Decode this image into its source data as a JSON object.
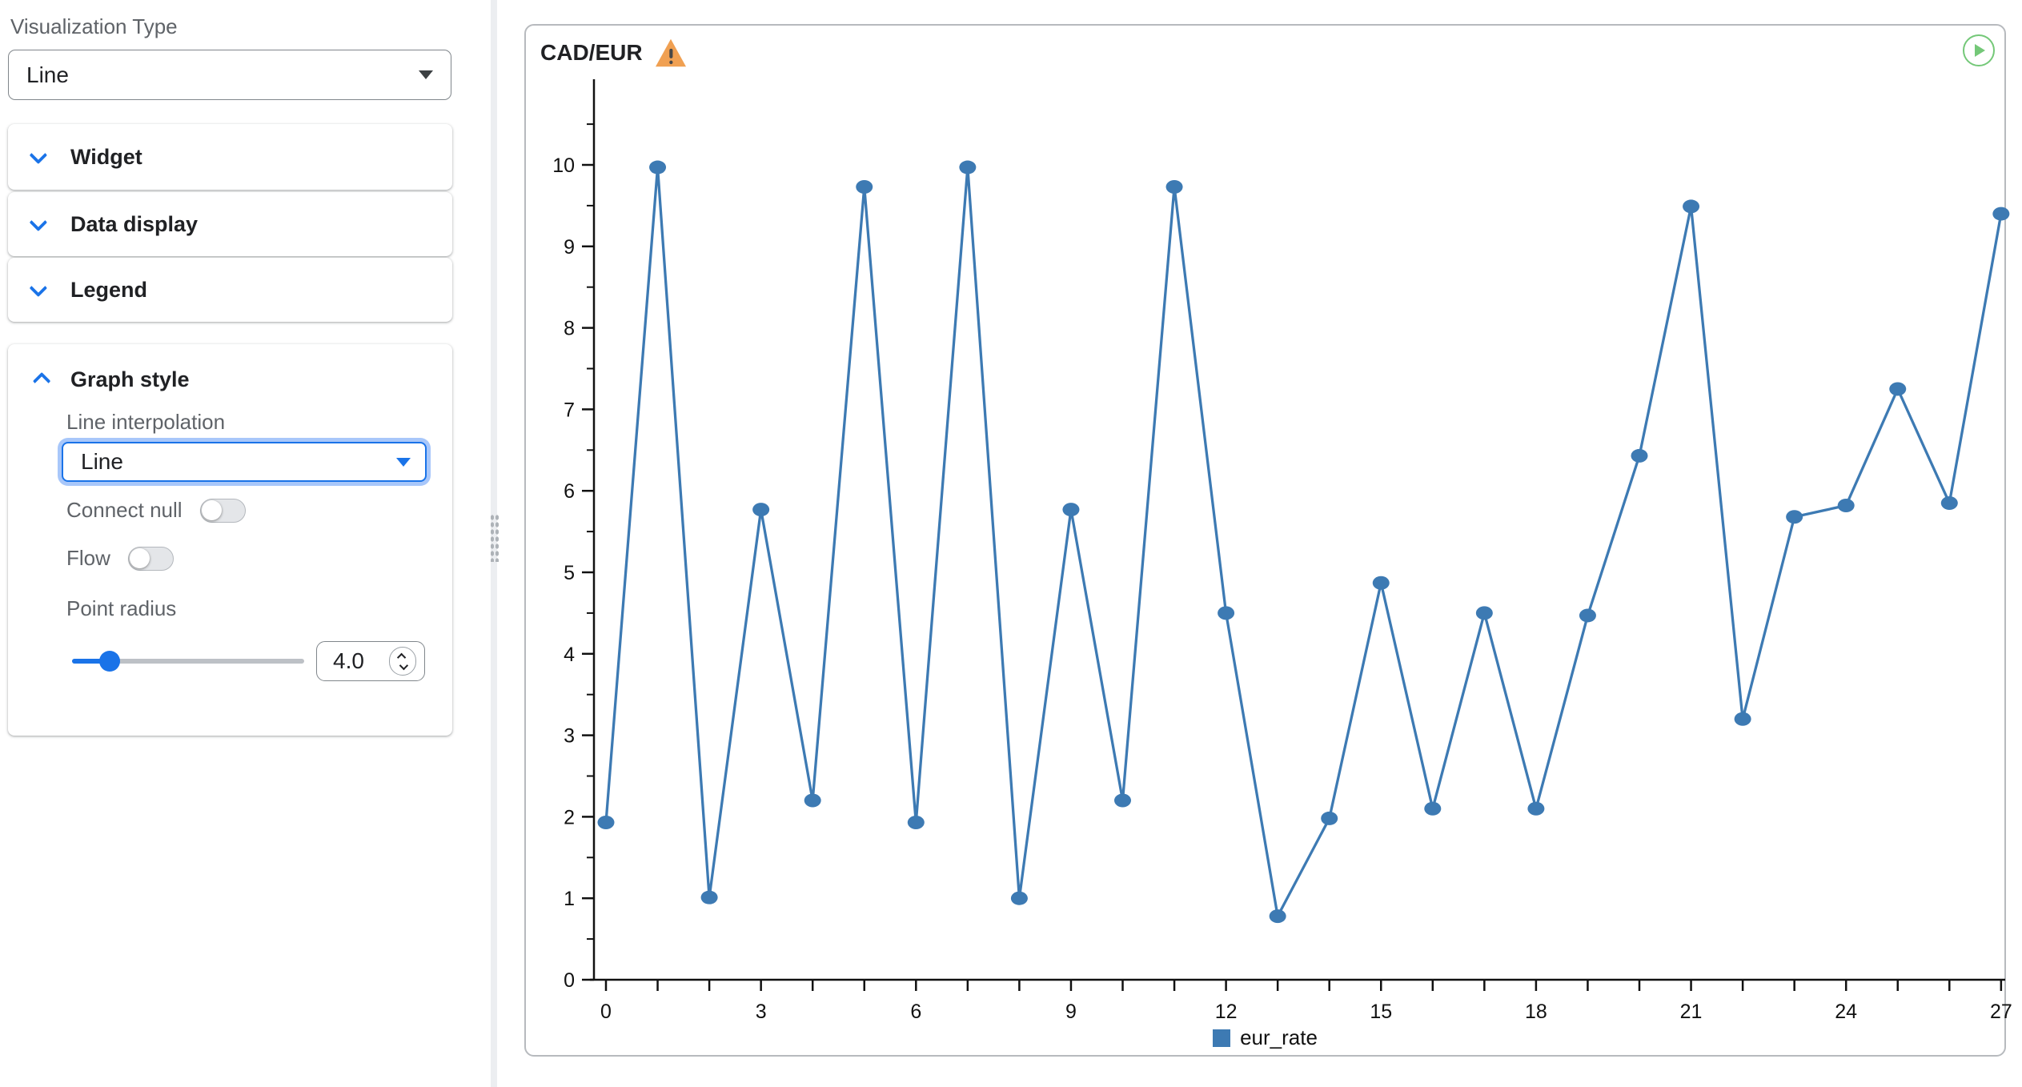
{
  "sidebar": {
    "visualization_type": {
      "label": "Visualization Type",
      "value": "Line"
    },
    "sections": [
      {
        "label": "Widget",
        "expanded": false
      },
      {
        "label": "Data display",
        "expanded": false
      },
      {
        "label": "Legend",
        "expanded": false
      },
      {
        "label": "Graph style",
        "expanded": true
      }
    ],
    "graph_style": {
      "line_interpolation": {
        "label": "Line interpolation",
        "value": "Line"
      },
      "connect_null": {
        "label": "Connect null",
        "value": "off"
      },
      "flow": {
        "label": "Flow",
        "value": "off"
      },
      "point_radius": {
        "label": "Point radius",
        "value": "4.0"
      }
    }
  },
  "panel": {
    "title": "CAD/EUR",
    "warning_icon": "warning-triangle",
    "run_icon": "play-circle",
    "colors": {
      "warning": "#f0a052",
      "play": "#74c878",
      "accent": "#1a73e8"
    }
  },
  "chart_data": {
    "type": "line",
    "title": "CAD/EUR",
    "xlabel": "",
    "ylabel": "",
    "xlim": [
      0,
      27
    ],
    "ylim": [
      0,
      10
    ],
    "grid": false,
    "x_label_step": 3,
    "x": [
      0,
      1,
      2,
      3,
      4,
      5,
      6,
      7,
      8,
      9,
      10,
      11,
      12,
      13,
      14,
      15,
      16,
      17,
      18,
      19,
      20,
      21,
      22,
      23,
      24,
      25,
      26,
      27
    ],
    "series": [
      {
        "name": "eur_rate",
        "color": "#3d7ab3",
        "values": [
          1.93,
          9.97,
          1.01,
          5.77,
          2.2,
          9.73,
          1.93,
          9.97,
          1.0,
          5.77,
          2.2,
          9.73,
          4.5,
          0.78,
          1.98,
          4.87,
          2.1,
          4.5,
          2.1,
          4.47,
          6.43,
          9.49,
          3.2,
          5.68,
          5.82,
          7.25,
          5.85,
          9.4
        ]
      }
    ],
    "legend": {
      "position": "bottom",
      "entries": [
        "eur_rate"
      ]
    }
  }
}
